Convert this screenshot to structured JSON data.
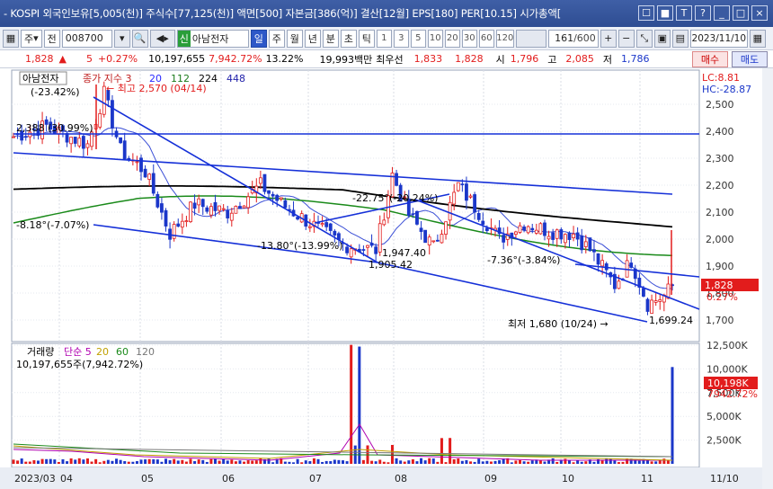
{
  "window": {
    "title": "- KOSPI 외국인보유[5,005(천)] 주식수[77,125(천)] 액면[500] 자본금[386(억)] 결산[12월] EPS[180] PER[10.15] 시가총액[",
    "buttons": [
      "☐",
      "■",
      "T",
      "?",
      "_",
      "□",
      "×"
    ]
  },
  "toolbar": {
    "type_label": "주",
    "mode_label": "전",
    "code": "008700",
    "badge": "신",
    "stock_name": "아남전자",
    "periods": [
      "일",
      "주",
      "월",
      "년",
      "분",
      "초",
      "틱"
    ],
    "active_period": "일",
    "intervals": [
      "1",
      "3",
      "5",
      "10",
      "20",
      "30",
      "60",
      "120"
    ],
    "count": "161",
    "total": "/600",
    "date": "2023/11/10"
  },
  "quote": {
    "price": "1,828",
    "arrow": "▲",
    "change": "5",
    "change_pct": "+0.27%",
    "volume": "10,197,655",
    "vol_ratio": "7,942.72%",
    "turnover": "13.22%",
    "amount": "19,993백만",
    "ask_label": "최우선",
    "ask": "1,833",
    "bid": "1,828",
    "open_label": "시",
    "open": "1,796",
    "high_label": "고",
    "high": "2,085",
    "low_label": "저",
    "low": "1,786",
    "buy_button": "매수",
    "sell_button": "매도"
  },
  "chart": {
    "stock_label": "아남전자",
    "legend_prefix": "종가 지수 3",
    "ma": [
      {
        "label": "20",
        "color": "#2a2aff"
      },
      {
        "label": "112",
        "color": "#1a7a1a"
      },
      {
        "label": "224",
        "color": "#000000"
      },
      {
        "label": "448",
        "color": "#2222aa"
      }
    ],
    "lc": "LC:8.81",
    "hc": "HC:-28.87",
    "current_price": "1,828",
    "current_pct": "0.27%",
    "price_ticks": [
      "2,500",
      "2,400",
      "2,300",
      "2,200",
      "2,100",
      "2,000",
      "1,900",
      "1,800",
      "1,700"
    ],
    "annotations": {
      "max": "최고 2,570 (04/14)",
      "min": "최저 1,680 (10/24)",
      "pct_top": "(-23.42%)",
      "a1": "2,388 (30.99%)",
      "a2": "-8.18°(-7.07%)",
      "a3": "-22.75°(-20.24%)",
      "a4": "-13.80°(-13.99%)",
      "a5": "1,947.40",
      "a6": "1,905.42",
      "a7": "-7.36°(-3.84%)",
      "a8": "1,699.24"
    },
    "volume_legend": "거래량  단순 5  20  60  120",
    "volume_legend_parts": [
      "거래량",
      "단순 5",
      "20",
      "60",
      "120"
    ],
    "volume_text": "10,197,655주(7,942.72%)",
    "volume_ticks": [
      "12,500K",
      "10,000K",
      "7,500K",
      "5,000K",
      "2,500K"
    ],
    "current_volume": "10,198K",
    "current_volume_pct": "7942.72%",
    "months": [
      "2023/03",
      "04",
      "05",
      "06",
      "07",
      "08",
      "09",
      "10",
      "11"
    ],
    "right_date": "11/10",
    "colors": {
      "up": "#e21c1c",
      "down": "#1b37c9",
      "trend": "#1530d8"
    }
  }
}
